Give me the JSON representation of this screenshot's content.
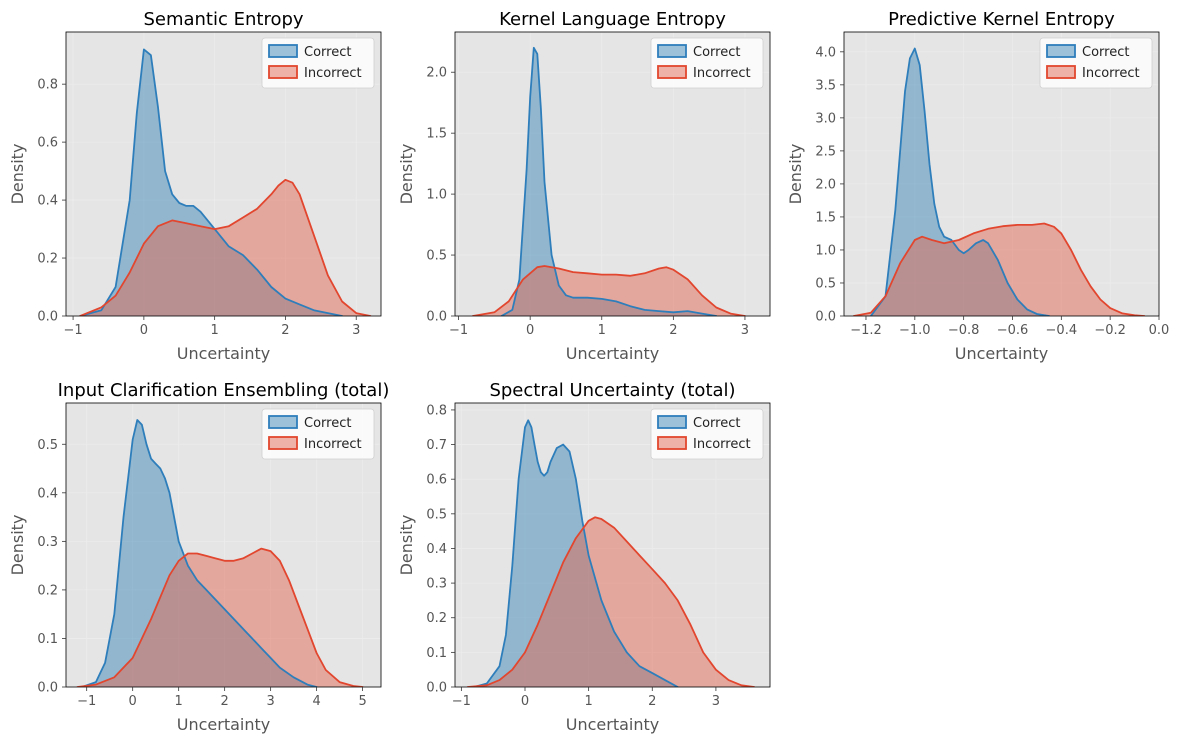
{
  "figure": {
    "colors": {
      "correct": "#2e7ebb",
      "correct_fill": "#3d88b8",
      "incorrect": "#e2462e",
      "incorrect_fill": "#e26a55",
      "axes_bg": "#e5e5e5",
      "grid": "#ececec",
      "tick_text": "#555555"
    }
  },
  "chart_data": [
    {
      "type": "area",
      "title": "Semantic Entropy",
      "xlabel": "Uncertainty",
      "ylabel": "Density",
      "xlim": [
        -1.1,
        3.35
      ],
      "ylim": [
        0,
        0.98
      ],
      "xticks": [
        -1,
        0,
        1,
        2,
        3
      ],
      "xtick_labels": [
        "−1",
        "0",
        "1",
        "2",
        "3"
      ],
      "yticks": [
        0.0,
        0.2,
        0.4,
        0.6,
        0.8
      ],
      "ytick_labels": [
        "0.0",
        "0.2",
        "0.4",
        "0.6",
        "0.8"
      ],
      "legend": {
        "position": "top-right",
        "entries": [
          "Correct",
          "Incorrect"
        ]
      },
      "grid": true,
      "series": [
        {
          "name": "Correct",
          "x": [
            -0.9,
            -0.6,
            -0.4,
            -0.2,
            -0.1,
            0.0,
            0.1,
            0.2,
            0.3,
            0.4,
            0.5,
            0.6,
            0.7,
            0.8,
            1.0,
            1.2,
            1.4,
            1.6,
            1.8,
            2.0,
            2.2,
            2.4,
            2.6,
            2.8
          ],
          "y": [
            0.0,
            0.02,
            0.1,
            0.4,
            0.7,
            0.92,
            0.9,
            0.72,
            0.5,
            0.42,
            0.39,
            0.38,
            0.38,
            0.36,
            0.3,
            0.24,
            0.21,
            0.16,
            0.1,
            0.06,
            0.04,
            0.02,
            0.01,
            0.0
          ]
        },
        {
          "name": "Incorrect",
          "x": [
            -0.9,
            -0.6,
            -0.4,
            -0.2,
            0.0,
            0.2,
            0.4,
            0.6,
            0.8,
            1.0,
            1.2,
            1.4,
            1.6,
            1.8,
            1.9,
            2.0,
            2.1,
            2.2,
            2.4,
            2.6,
            2.8,
            3.0,
            3.2
          ],
          "y": [
            0.0,
            0.03,
            0.07,
            0.15,
            0.25,
            0.31,
            0.33,
            0.32,
            0.31,
            0.3,
            0.31,
            0.34,
            0.37,
            0.42,
            0.45,
            0.47,
            0.46,
            0.42,
            0.28,
            0.14,
            0.05,
            0.01,
            0.0
          ]
        }
      ]
    },
    {
      "type": "area",
      "title": "Kernel Language Entropy",
      "xlabel": "Uncertainty",
      "ylabel": "Density",
      "xlim": [
        -1.05,
        3.35
      ],
      "ylim": [
        0,
        2.33
      ],
      "xticks": [
        -1,
        0,
        1,
        2,
        3
      ],
      "xtick_labels": [
        "−1",
        "0",
        "1",
        "2",
        "3"
      ],
      "yticks": [
        0.0,
        0.5,
        1.0,
        1.5,
        2.0
      ],
      "ytick_labels": [
        "0.0",
        "0.5",
        "1.0",
        "1.5",
        "2.0"
      ],
      "legend": {
        "position": "top-right",
        "entries": [
          "Correct",
          "Incorrect"
        ]
      },
      "grid": true,
      "series": [
        {
          "name": "Correct",
          "x": [
            -0.4,
            -0.25,
            -0.15,
            -0.05,
            0.0,
            0.05,
            0.1,
            0.15,
            0.2,
            0.3,
            0.4,
            0.5,
            0.6,
            0.8,
            1.0,
            1.2,
            1.4,
            1.6,
            1.8,
            2.0,
            2.2,
            2.4,
            2.6
          ],
          "y": [
            0.0,
            0.05,
            0.3,
            1.2,
            1.8,
            2.2,
            2.15,
            1.7,
            1.1,
            0.5,
            0.25,
            0.17,
            0.15,
            0.15,
            0.14,
            0.12,
            0.08,
            0.05,
            0.04,
            0.03,
            0.04,
            0.02,
            0.0
          ]
        },
        {
          "name": "Incorrect",
          "x": [
            -0.8,
            -0.5,
            -0.3,
            -0.1,
            0.1,
            0.2,
            0.4,
            0.6,
            0.8,
            1.0,
            1.2,
            1.4,
            1.6,
            1.8,
            1.9,
            2.0,
            2.2,
            2.4,
            2.6,
            2.8,
            3.0
          ],
          "y": [
            0.0,
            0.03,
            0.12,
            0.3,
            0.4,
            0.41,
            0.39,
            0.36,
            0.35,
            0.34,
            0.34,
            0.33,
            0.35,
            0.39,
            0.4,
            0.38,
            0.3,
            0.17,
            0.07,
            0.02,
            0.0
          ]
        }
      ]
    },
    {
      "type": "area",
      "title": "Predictive Kernel Entropy",
      "xlabel": "Uncertainty",
      "ylabel": "Density",
      "xlim": [
        -1.29,
        0.0
      ],
      "ylim": [
        0,
        4.3
      ],
      "xticks": [
        -1.2,
        -1.0,
        -0.8,
        -0.6,
        -0.4,
        -0.2,
        0.0
      ],
      "xtick_labels": [
        "−1.2",
        "−1.0",
        "−0.8",
        "−0.6",
        "−0.4",
        "−0.2",
        "0.0"
      ],
      "yticks": [
        0.0,
        0.5,
        1.0,
        1.5,
        2.0,
        2.5,
        3.0,
        3.5,
        4.0
      ],
      "ytick_labels": [
        "0.0",
        "0.5",
        "1.0",
        "1.5",
        "2.0",
        "2.5",
        "3.0",
        "3.5",
        "4.0"
      ],
      "legend": {
        "position": "top-right",
        "entries": [
          "Correct",
          "Incorrect"
        ]
      },
      "grid": true,
      "series": [
        {
          "name": "Correct",
          "x": [
            -1.18,
            -1.12,
            -1.08,
            -1.04,
            -1.02,
            -1.0,
            -0.98,
            -0.96,
            -0.94,
            -0.92,
            -0.9,
            -0.88,
            -0.85,
            -0.82,
            -0.8,
            -0.78,
            -0.75,
            -0.72,
            -0.7,
            -0.66,
            -0.62,
            -0.58,
            -0.54,
            -0.5,
            -0.45
          ],
          "y": [
            0.0,
            0.3,
            1.6,
            3.4,
            3.9,
            4.05,
            3.8,
            3.1,
            2.3,
            1.7,
            1.35,
            1.2,
            1.15,
            1.0,
            0.95,
            1.0,
            1.1,
            1.15,
            1.1,
            0.85,
            0.5,
            0.25,
            0.1,
            0.03,
            0.0
          ]
        },
        {
          "name": "Incorrect",
          "x": [
            -1.25,
            -1.18,
            -1.12,
            -1.06,
            -1.0,
            -0.97,
            -0.93,
            -0.88,
            -0.82,
            -0.76,
            -0.7,
            -0.64,
            -0.58,
            -0.52,
            -0.47,
            -0.43,
            -0.4,
            -0.36,
            -0.32,
            -0.28,
            -0.24,
            -0.2,
            -0.15,
            -0.1,
            -0.06
          ],
          "y": [
            0.0,
            0.05,
            0.3,
            0.8,
            1.15,
            1.2,
            1.15,
            1.1,
            1.15,
            1.25,
            1.32,
            1.36,
            1.38,
            1.38,
            1.4,
            1.35,
            1.25,
            1.0,
            0.7,
            0.45,
            0.25,
            0.12,
            0.04,
            0.01,
            0.0
          ]
        }
      ]
    },
    {
      "type": "area",
      "title": "Input Clarification Ensembling (total)",
      "xlabel": "Uncertainty",
      "ylabel": "Density",
      "xlim": [
        -1.45,
        5.4
      ],
      "ylim": [
        0,
        0.585
      ],
      "xticks": [
        -1,
        0,
        1,
        2,
        3,
        4,
        5
      ],
      "xtick_labels": [
        "−1",
        "0",
        "1",
        "2",
        "3",
        "4",
        "5"
      ],
      "yticks": [
        0.0,
        0.1,
        0.2,
        0.3,
        0.4,
        0.5
      ],
      "ytick_labels": [
        "0.0",
        "0.1",
        "0.2",
        "0.3",
        "0.4",
        "0.5"
      ],
      "legend": {
        "position": "top-right",
        "entries": [
          "Correct",
          "Incorrect"
        ]
      },
      "grid": true,
      "series": [
        {
          "name": "Correct",
          "x": [
            -1.1,
            -0.8,
            -0.6,
            -0.4,
            -0.2,
            0.0,
            0.1,
            0.2,
            0.3,
            0.4,
            0.5,
            0.6,
            0.7,
            0.8,
            0.9,
            1.0,
            1.2,
            1.4,
            1.6,
            1.8,
            2.0,
            2.2,
            2.5,
            2.8,
            3.0,
            3.2,
            3.5,
            3.8,
            4.0
          ],
          "y": [
            0.0,
            0.01,
            0.05,
            0.15,
            0.35,
            0.51,
            0.55,
            0.54,
            0.5,
            0.47,
            0.46,
            0.45,
            0.43,
            0.4,
            0.35,
            0.3,
            0.25,
            0.22,
            0.2,
            0.18,
            0.16,
            0.14,
            0.11,
            0.08,
            0.06,
            0.04,
            0.02,
            0.005,
            0.0
          ]
        },
        {
          "name": "Incorrect",
          "x": [
            -1.2,
            -0.8,
            -0.4,
            0.0,
            0.4,
            0.8,
            1.0,
            1.2,
            1.4,
            1.6,
            1.8,
            2.0,
            2.2,
            2.4,
            2.6,
            2.8,
            3.0,
            3.2,
            3.4,
            3.6,
            3.8,
            4.0,
            4.2,
            4.5,
            4.8,
            5.0
          ],
          "y": [
            0.0,
            0.005,
            0.02,
            0.06,
            0.14,
            0.23,
            0.26,
            0.275,
            0.275,
            0.27,
            0.265,
            0.26,
            0.26,
            0.265,
            0.275,
            0.285,
            0.28,
            0.26,
            0.22,
            0.17,
            0.12,
            0.07,
            0.035,
            0.01,
            0.002,
            0.0
          ]
        }
      ]
    },
    {
      "type": "area",
      "title": "Spectral Uncertainty (total)",
      "xlabel": "Uncertainty",
      "ylabel": "Density",
      "xlim": [
        -1.1,
        3.85
      ],
      "ylim": [
        0,
        0.82
      ],
      "xticks": [
        -1,
        0,
        1,
        2,
        3
      ],
      "xtick_labels": [
        "−1",
        "0",
        "1",
        "2",
        "3"
      ],
      "yticks": [
        0.0,
        0.1,
        0.2,
        0.3,
        0.4,
        0.5,
        0.6,
        0.7,
        0.8
      ],
      "ytick_labels": [
        "0.0",
        "0.1",
        "0.2",
        "0.3",
        "0.4",
        "0.5",
        "0.6",
        "0.7",
        "0.8"
      ],
      "legend": {
        "position": "top-right",
        "entries": [
          "Correct",
          "Incorrect"
        ]
      },
      "grid": true,
      "series": [
        {
          "name": "Correct",
          "x": [
            -0.8,
            -0.6,
            -0.4,
            -0.3,
            -0.2,
            -0.1,
            0.0,
            0.05,
            0.1,
            0.15,
            0.2,
            0.25,
            0.3,
            0.35,
            0.4,
            0.5,
            0.6,
            0.7,
            0.8,
            0.9,
            1.0,
            1.2,
            1.4,
            1.6,
            1.8,
            2.0,
            2.2,
            2.4
          ],
          "y": [
            0.0,
            0.01,
            0.06,
            0.15,
            0.35,
            0.6,
            0.75,
            0.77,
            0.75,
            0.7,
            0.65,
            0.62,
            0.61,
            0.62,
            0.65,
            0.69,
            0.7,
            0.68,
            0.6,
            0.48,
            0.38,
            0.25,
            0.16,
            0.1,
            0.06,
            0.04,
            0.02,
            0.0
          ]
        },
        {
          "name": "Incorrect",
          "x": [
            -0.9,
            -0.6,
            -0.4,
            -0.2,
            0.0,
            0.2,
            0.4,
            0.6,
            0.8,
            1.0,
            1.1,
            1.2,
            1.4,
            1.6,
            1.8,
            2.0,
            2.2,
            2.4,
            2.6,
            2.8,
            3.0,
            3.2,
            3.4,
            3.6
          ],
          "y": [
            0.0,
            0.005,
            0.02,
            0.05,
            0.1,
            0.18,
            0.27,
            0.36,
            0.43,
            0.48,
            0.49,
            0.485,
            0.46,
            0.42,
            0.38,
            0.34,
            0.3,
            0.25,
            0.18,
            0.1,
            0.05,
            0.02,
            0.005,
            0.0
          ]
        }
      ]
    }
  ]
}
